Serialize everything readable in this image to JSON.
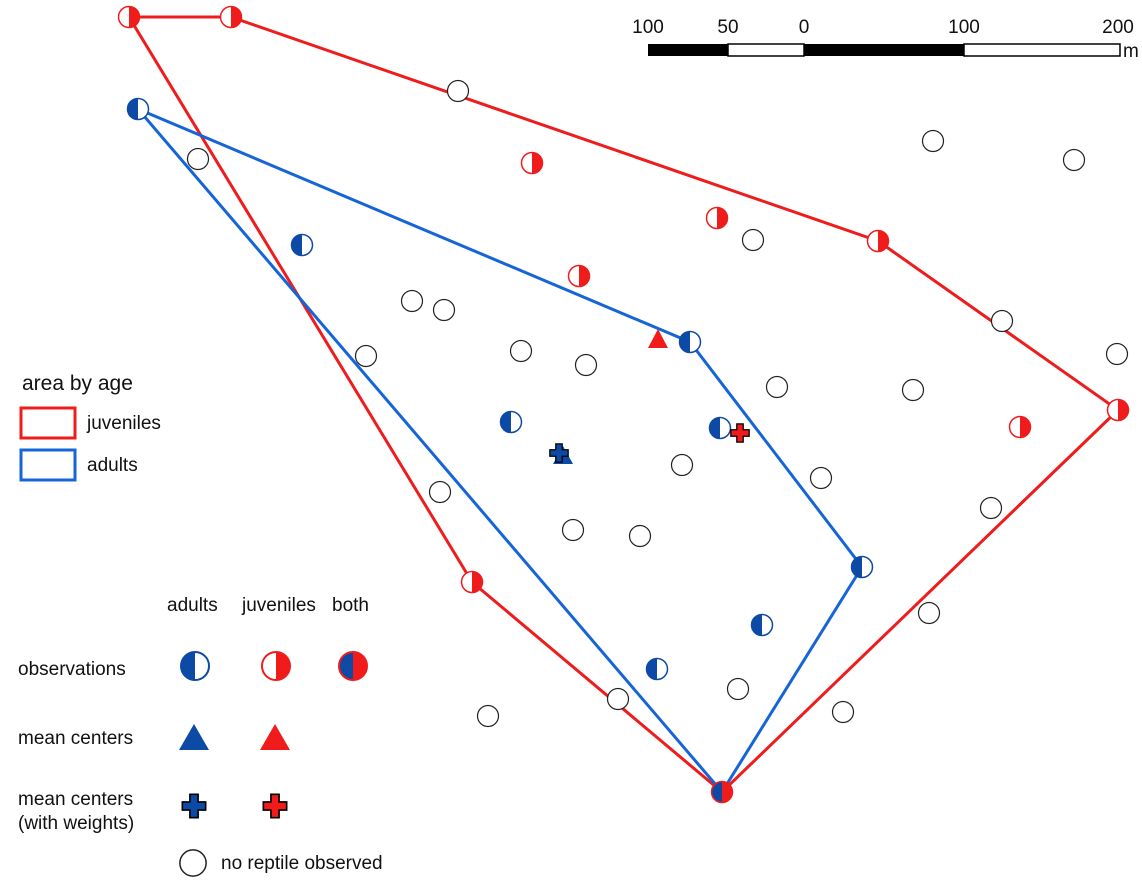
{
  "colors": {
    "juveniles": "#ee1c1c",
    "adults": "#1565d8",
    "adult_fill": "#0d4aa6",
    "juvenile_fill": "#f01c1c",
    "empty": "#222222"
  },
  "scalebar": {
    "ticks": [
      "100",
      "50",
      "0",
      "100",
      "200"
    ],
    "unit": "m"
  },
  "legend_area": {
    "title": "area by age",
    "items": [
      {
        "label": "juveniles",
        "color": "#ee1c1c"
      },
      {
        "label": "adults",
        "color": "#1565d8"
      }
    ]
  },
  "legend_symbols": {
    "columns": [
      "adults",
      "juveniles",
      "both"
    ],
    "rows": {
      "observations": "observations",
      "mean_centers": "mean centers",
      "weighted_line1": "mean centers",
      "weighted_line2": "(with weights)"
    },
    "no_reptile": "no reptile observed"
  }
}
